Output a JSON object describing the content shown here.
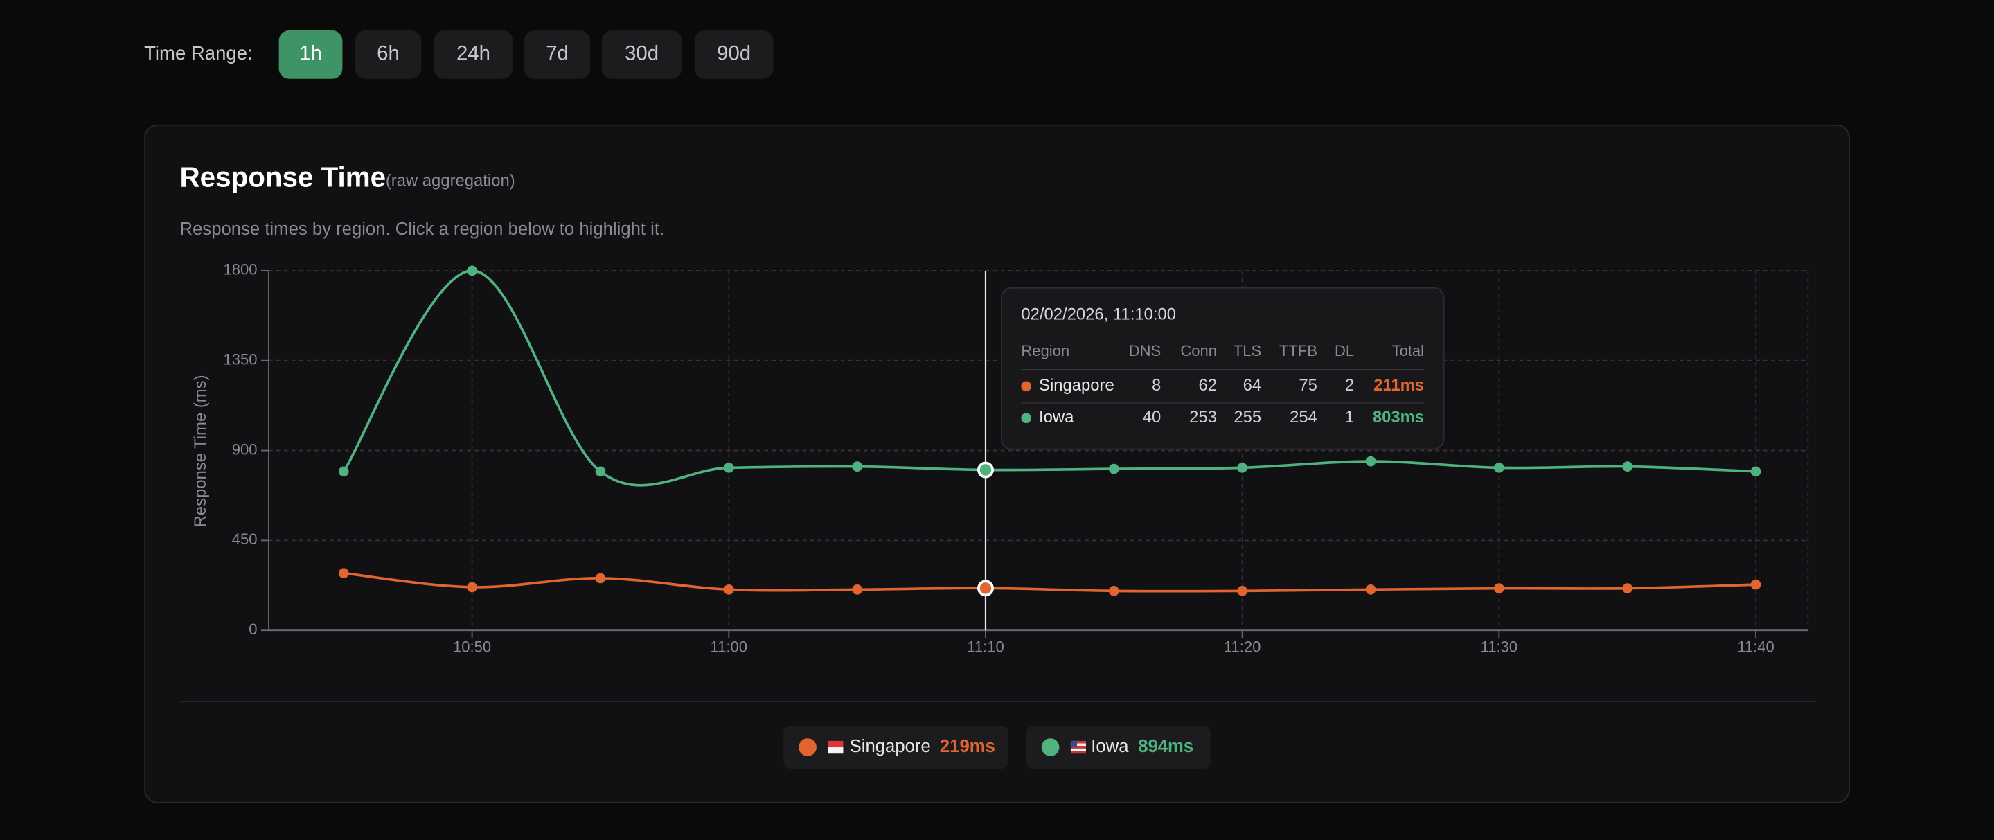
{
  "time_range": {
    "label": "Time Range:",
    "options": [
      "1h",
      "6h",
      "24h",
      "7d",
      "30d",
      "90d"
    ],
    "active": 0
  },
  "chart_data": {
    "type": "line",
    "title": "Response Time",
    "title_note": "(raw aggregation)",
    "subtitle": "Response times by region. Click a region below to highlight it.",
    "y_label": "Response Time (ms)",
    "x": [
      "10:45",
      "10:50",
      "10:55",
      "11:00",
      "11:05",
      "11:10",
      "11:15",
      "11:20",
      "11:25",
      "11:30",
      "11:35",
      "11:40"
    ],
    "xticks": [
      "10:50",
      "11:00",
      "11:10",
      "11:20",
      "11:30",
      "11:40"
    ],
    "ylim": [
      0,
      1800
    ],
    "yticks": [
      0,
      450,
      900,
      1350,
      1800
    ],
    "grid": true,
    "series": [
      {
        "name": "Singapore",
        "color": "#e0652f",
        "values": [
          286,
          216,
          261,
          204,
          204,
          211,
          197,
          197,
          204,
          210,
          210,
          229
        ],
        "summary": "219ms"
      },
      {
        "name": "Iowa",
        "color": "#4fb27f",
        "values": [
          795,
          1800,
          795,
          814,
          820,
          803,
          808,
          814,
          846,
          814,
          820,
          795
        ],
        "summary": "894ms"
      }
    ],
    "tooltip": {
      "title": "02/02/2026, 11:10:00",
      "columns": [
        "Region",
        "DNS",
        "Conn",
        "TLS",
        "TTFB",
        "DL",
        "Total"
      ],
      "rows": [
        {
          "region": "Singapore",
          "cells": [
            8,
            62,
            64,
            75,
            2
          ],
          "total": "211ms"
        },
        {
          "region": "Iowa",
          "cells": [
            40,
            253,
            255,
            254,
            1
          ],
          "total": "803ms"
        }
      ]
    }
  }
}
